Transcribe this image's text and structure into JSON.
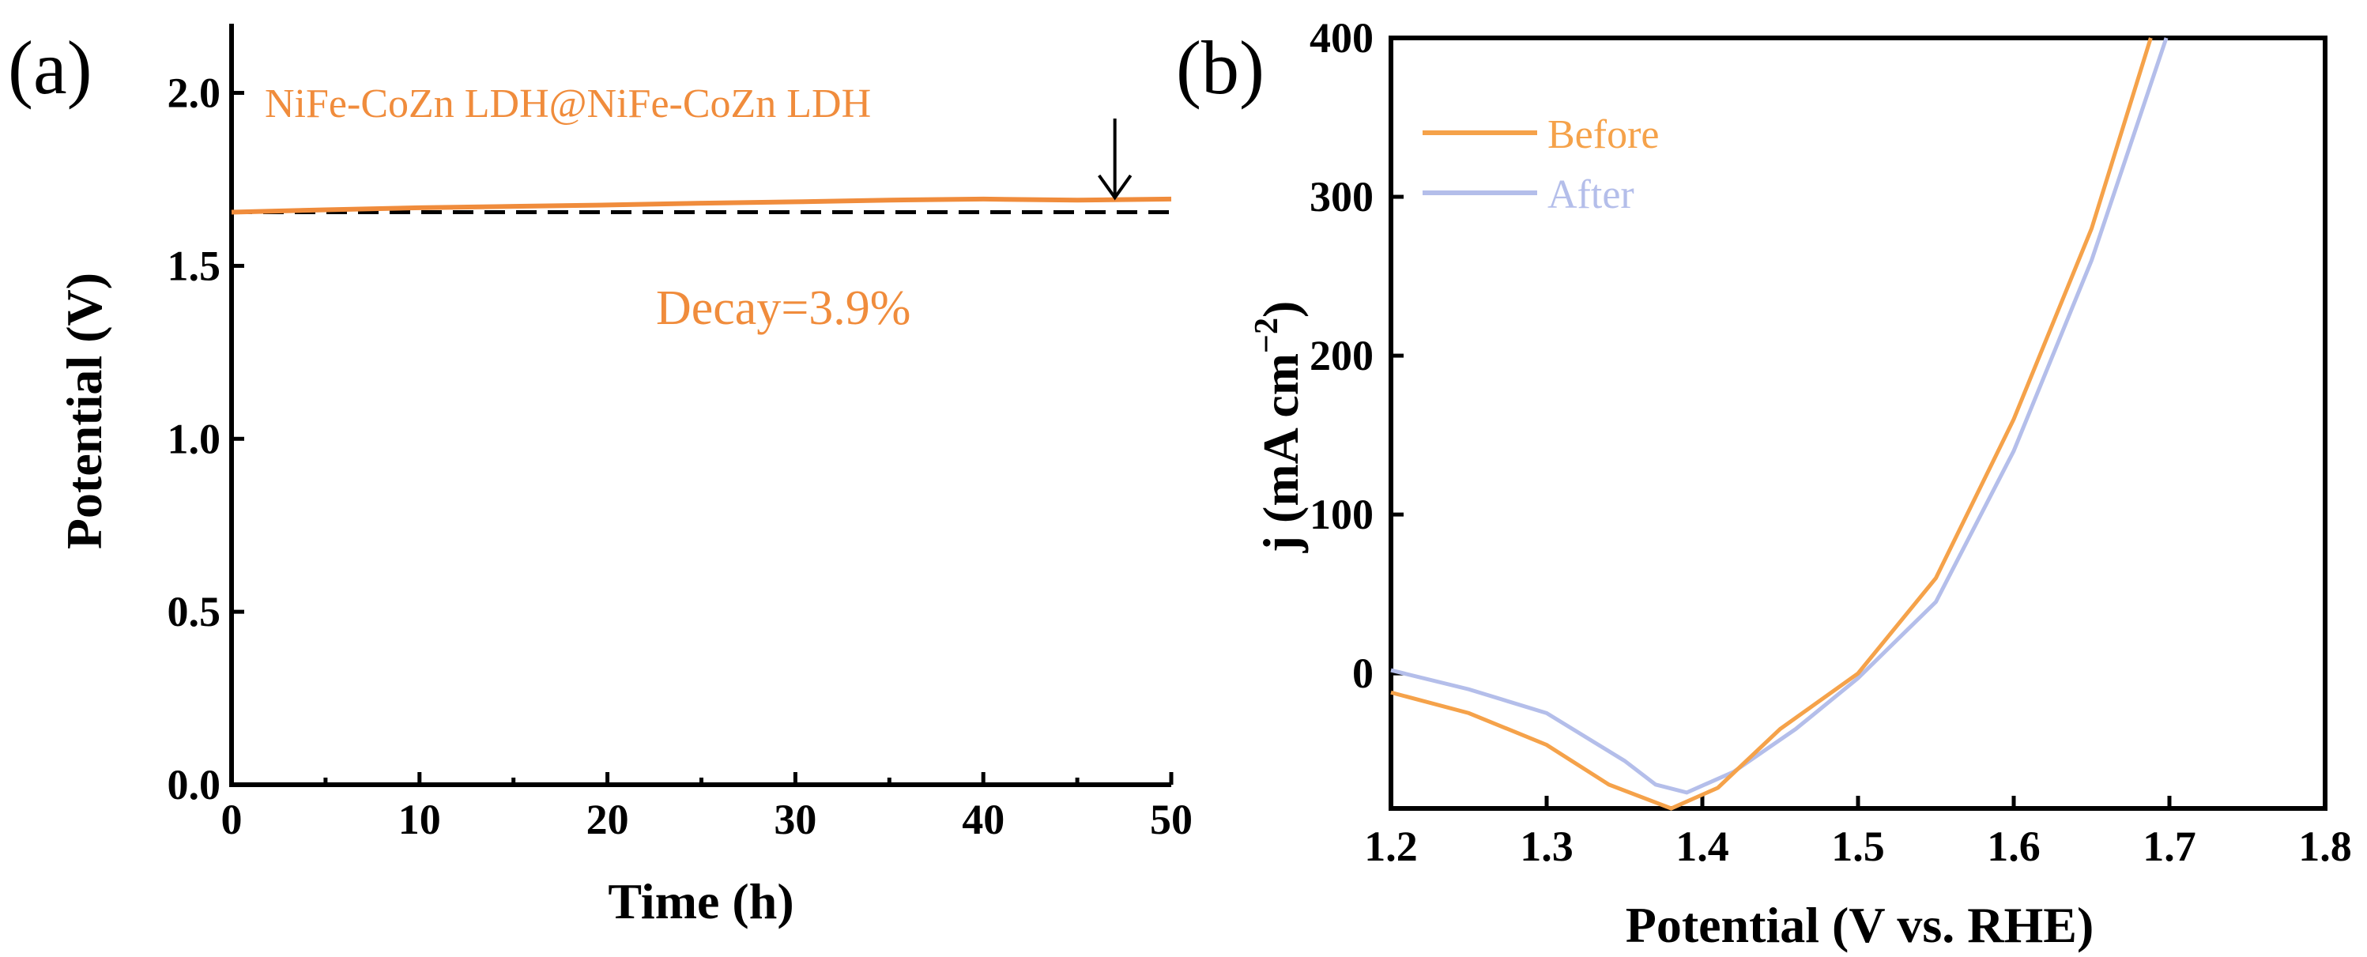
{
  "colors": {
    "orange": "#F5A24A",
    "lavender": "#B4BEEA",
    "annotation_orange": "#F08C3C",
    "black": "#000000"
  },
  "chart_data": [
    {
      "panel_label": "(a)",
      "type": "line",
      "title": "",
      "xlabel": "Time (h)",
      "ylabel": "Potential (V)",
      "xlim": [
        0,
        50
      ],
      "ylim": [
        0,
        2.2
      ],
      "xticks": [
        "0",
        "10",
        "20",
        "30",
        "40",
        "50"
      ],
      "yticks": [
        "0.0",
        "0.5",
        "1.0",
        "1.5",
        "2.0"
      ],
      "series": [
        {
          "name": "NiFe-CoZn LDH@NiFe-CoZn LDH",
          "x": [
            0,
            5,
            10,
            15,
            20,
            25,
            30,
            35,
            40,
            45,
            50
          ],
          "y": [
            1.655,
            1.662,
            1.668,
            1.672,
            1.676,
            1.681,
            1.685,
            1.69,
            1.693,
            1.69,
            1.693
          ]
        }
      ],
      "reference_line": {
        "y": 1.655,
        "style": "dashed"
      },
      "annotations": {
        "legend_text": "NiFe-CoZn LDH@NiFe-CoZn LDH",
        "decay_text": "Decay=3.9%",
        "arrow_at_x": 47
      }
    },
    {
      "panel_label": "(b)",
      "type": "line",
      "title": "",
      "xlabel": "Potential (V vs. RHE)",
      "ylabel": "j (mA cm−2)",
      "ylabel_parts": {
        "main": "j (mA cm",
        "sup": "−2",
        "end": ")"
      },
      "xlim": [
        1.2,
        1.8
      ],
      "ylim": [
        -85,
        400
      ],
      "xticks": [
        "1.2",
        "1.3",
        "1.4",
        "1.5",
        "1.6",
        "1.7",
        "1.8"
      ],
      "yticks": [
        "0",
        "100",
        "200",
        "300",
        "400"
      ],
      "legend_position": "top-left",
      "series": [
        {
          "name": "Before",
          "x": [
            1.2,
            1.25,
            1.3,
            1.34,
            1.38,
            1.41,
            1.45,
            1.5,
            1.55,
            1.6,
            1.65,
            1.688
          ],
          "y": [
            -12,
            -25,
            -45,
            -70,
            -85,
            -72,
            -35,
            0,
            60,
            160,
            280,
            400
          ]
        },
        {
          "name": "After",
          "x": [
            1.2,
            1.25,
            1.3,
            1.35,
            1.37,
            1.39,
            1.42,
            1.46,
            1.5,
            1.55,
            1.6,
            1.65,
            1.698
          ],
          "y": [
            2,
            -10,
            -25,
            -55,
            -70,
            -75,
            -62,
            -35,
            -3,
            45,
            140,
            260,
            400
          ]
        }
      ]
    }
  ]
}
